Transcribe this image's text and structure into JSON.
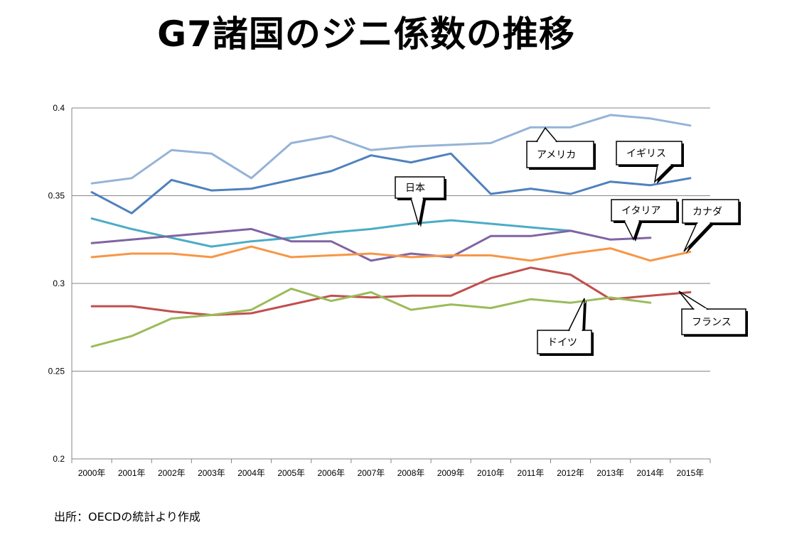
{
  "title": "G7諸国のジニ係数の推移",
  "source": "出所：OECDの統計より作成",
  "chart_data": {
    "type": "line",
    "title": "G7諸国のジニ係数の推移",
    "xlabel": "",
    "ylabel": "",
    "ylim": [
      0.2,
      0.4
    ],
    "yticks": [
      "0.2",
      "0.25",
      "0.3",
      "0.35",
      "0.4"
    ],
    "categories": [
      "2000年",
      "2001年",
      "2002年",
      "2003年",
      "2004年",
      "2005年",
      "2006年",
      "2007年",
      "2008年",
      "2009年",
      "2010年",
      "2011年",
      "2012年",
      "2013年",
      "2014年",
      "2015年"
    ],
    "grid": true,
    "series": [
      {
        "name": "アメリカ",
        "color": "#95b3d7",
        "values": [
          0.357,
          0.36,
          0.376,
          0.374,
          0.36,
          0.38,
          0.384,
          0.376,
          0.378,
          0.379,
          0.38,
          0.389,
          0.389,
          0.396,
          0.394,
          0.39
        ]
      },
      {
        "name": "イギリス",
        "color": "#4f81bd",
        "values": [
          0.352,
          0.34,
          0.359,
          0.353,
          0.354,
          0.359,
          0.364,
          0.373,
          0.369,
          0.374,
          0.351,
          0.354,
          0.351,
          0.358,
          0.356,
          0.36
        ]
      },
      {
        "name": "日本",
        "color": "#4bacc6",
        "values": [
          0.337,
          0.331,
          0.326,
          0.321,
          0.324,
          0.326,
          0.329,
          0.331,
          0.334,
          0.336,
          0.334,
          0.332,
          0.33,
          null,
          null,
          null
        ]
      },
      {
        "name": "イタリア",
        "color": "#8064a2",
        "values": [
          0.323,
          0.325,
          0.327,
          0.329,
          0.331,
          0.324,
          0.324,
          0.313,
          0.317,
          0.315,
          0.327,
          0.327,
          0.33,
          0.325,
          0.326,
          null
        ]
      },
      {
        "name": "カナダ",
        "color": "#f79646",
        "values": [
          0.315,
          0.317,
          0.317,
          0.315,
          0.321,
          0.315,
          0.316,
          0.317,
          0.315,
          0.316,
          0.316,
          0.313,
          0.317,
          0.32,
          0.313,
          0.318
        ]
      },
      {
        "name": "フランス",
        "color": "#c0504d",
        "values": [
          0.287,
          0.287,
          0.284,
          0.282,
          0.283,
          0.288,
          0.293,
          0.292,
          0.293,
          0.293,
          0.303,
          0.309,
          0.305,
          0.291,
          0.293,
          0.295
        ]
      },
      {
        "name": "ドイツ",
        "color": "#9bbb59",
        "values": [
          0.264,
          0.27,
          0.28,
          0.282,
          0.285,
          0.297,
          0.29,
          0.295,
          0.285,
          0.288,
          0.286,
          0.291,
          0.289,
          0.292,
          0.289,
          null
        ]
      }
    ]
  },
  "callouts": [
    {
      "series": "アメリカ",
      "label": "アメリカ"
    },
    {
      "series": "イギリス",
      "label": "イギリス"
    },
    {
      "series": "日本",
      "label": "日本"
    },
    {
      "series": "イタリア",
      "label": "イタリア"
    },
    {
      "series": "カナダ",
      "label": "カナダ"
    },
    {
      "series": "フランス",
      "label": "フランス"
    },
    {
      "series": "ドイツ",
      "label": "ドイツ"
    }
  ]
}
